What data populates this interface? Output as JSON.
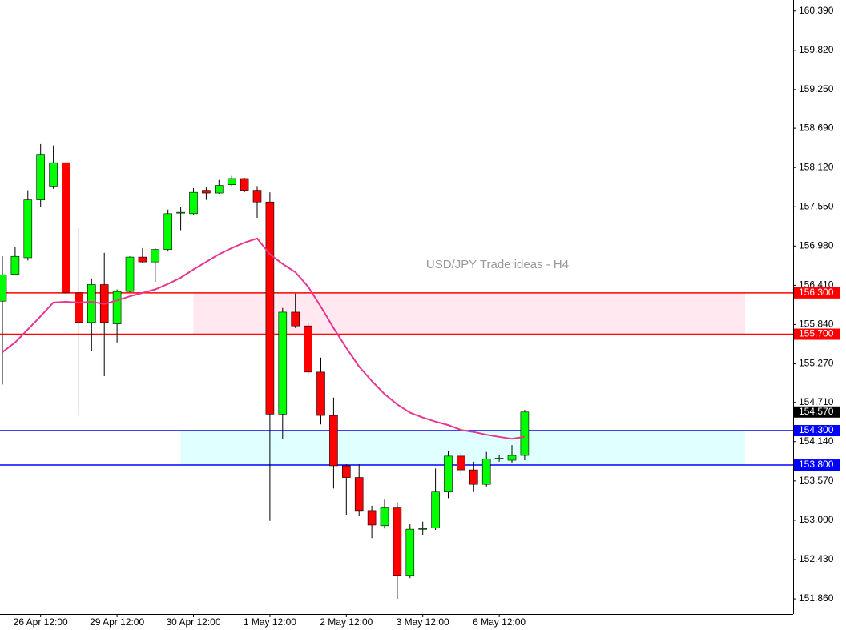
{
  "chart_data": {
    "type": "candlestick",
    "title": "USD/JPY Trade ideas - H4",
    "categories": [
      null,
      null,
      null,
      "26 Apr 12:00",
      null,
      null,
      null,
      null,
      null,
      "29 Apr 12:00",
      null,
      null,
      null,
      null,
      null,
      "30 Apr 12:00",
      null,
      null,
      null,
      null,
      null,
      "1 May 12:00",
      null,
      null,
      null,
      null,
      null,
      "2 May 12:00",
      null,
      null,
      null,
      null,
      null,
      "3 May 12:00",
      null,
      null,
      null,
      null,
      null,
      "6 May 12:00",
      null,
      null
    ],
    "open": [
      156.18,
      156.57,
      156.81,
      157.65,
      157.85,
      158.19,
      156.3,
      155.87,
      156.42,
      155.85,
      156.32,
      156.82,
      156.75,
      156.93,
      157.46,
      157.45,
      157.79,
      157.75,
      157.87,
      157.96,
      157.79,
      157.62,
      154.54,
      156.02,
      155.82,
      155.15,
      154.52,
      153.79,
      153.62,
      153.14,
      152.92,
      153.19,
      152.2,
      152.87,
      152.89,
      153.42,
      153.93,
      153.73,
      153.52,
      153.89,
      153.87,
      153.94
    ],
    "high": [
      156.83,
      156.97,
      157.79,
      158.46,
      158.44,
      160.2,
      157.24,
      156.51,
      156.88,
      156.35,
      156.83,
      156.95,
      156.95,
      157.51,
      157.55,
      157.82,
      157.83,
      157.94,
      158.0,
      157.97,
      157.85,
      157.76,
      156.08,
      156.29,
      155.87,
      155.36,
      154.78,
      153.81,
      153.81,
      153.21,
      153.31,
      153.26,
      152.94,
      152.98,
      153.75,
      154.01,
      153.98,
      153.85,
      153.99,
      153.95,
      154.09,
      154.6
    ],
    "low": [
      154.97,
      156.56,
      156.77,
      157.55,
      157.81,
      155.18,
      154.52,
      155.46,
      155.09,
      155.58,
      156.31,
      156.74,
      156.46,
      156.9,
      157.21,
      157.44,
      157.65,
      157.74,
      157.85,
      157.76,
      157.39,
      152.99,
      154.18,
      155.79,
      155.11,
      154.39,
      153.46,
      153.08,
      153.06,
      152.74,
      152.88,
      151.86,
      152.16,
      152.79,
      152.86,
      153.32,
      153.67,
      153.42,
      153.49,
      153.85,
      153.83,
      153.87
    ],
    "close": [
      156.56,
      156.83,
      157.65,
      158.3,
      158.19,
      156.3,
      155.87,
      156.42,
      155.87,
      156.32,
      156.82,
      156.75,
      156.93,
      157.45,
      157.47,
      157.76,
      157.75,
      157.86,
      157.96,
      157.79,
      157.62,
      154.54,
      156.02,
      155.82,
      155.15,
      154.52,
      153.79,
      153.62,
      153.14,
      152.93,
      153.19,
      152.2,
      152.87,
      152.88,
      153.42,
      153.93,
      153.73,
      153.52,
      153.89,
      153.9,
      153.94,
      154.57
    ],
    "up_color": "#00ff00",
    "down_color": "#ff0000",
    "moving_average": {
      "color": "#e8368f",
      "values": [
        155.44,
        155.58,
        155.77,
        155.96,
        156.16,
        156.17,
        156.16,
        156.17,
        156.14,
        156.19,
        156.25,
        156.3,
        156.35,
        156.43,
        156.52,
        156.64,
        156.75,
        156.86,
        156.95,
        157.03,
        157.09,
        156.86,
        156.72,
        156.6,
        156.39,
        156.1,
        155.79,
        155.5,
        155.23,
        155.02,
        154.83,
        154.68,
        154.56,
        154.49,
        154.43,
        154.38,
        154.31,
        154.28,
        154.24,
        154.21,
        154.18,
        154.21
      ]
    },
    "levels": [
      {
        "value": 156.3,
        "label": "156.300",
        "color": "#ff0000"
      },
      {
        "value": 155.7,
        "label": "155.700",
        "color": "#ff0000"
      },
      {
        "value": 154.3,
        "label": "154.300",
        "color": "#0000ff"
      },
      {
        "value": 153.8,
        "label": "153.800",
        "color": "#0000ff"
      }
    ],
    "zones": [
      {
        "color": "#ffe8f0"
      },
      {
        "color": "#e0ffff"
      }
    ],
    "current_price": {
      "value": 154.57,
      "label": "154.570"
    },
    "ylim": [
      151.64,
      160.55
    ],
    "yticks": [
      {
        "value": 160.39,
        "label": "160.390"
      },
      {
        "value": 159.82,
        "label": "159.820"
      },
      {
        "value": 159.25,
        "label": "159.250"
      },
      {
        "value": 158.69,
        "label": "158.690"
      },
      {
        "value": 158.12,
        "label": "158.120"
      },
      {
        "value": 157.55,
        "label": "157.550"
      },
      {
        "value": 156.98,
        "label": "156.980"
      },
      {
        "value": 156.41,
        "label": "156.410"
      },
      {
        "value": 155.84,
        "label": "155.840"
      },
      {
        "value": 155.27,
        "label": "155.270"
      },
      {
        "value": 154.71,
        "label": "154.710"
      },
      {
        "value": 154.14,
        "label": "154.140"
      },
      {
        "value": 153.57,
        "label": "153.570"
      },
      {
        "value": 153.0,
        "label": "153.000"
      },
      {
        "value": 152.43,
        "label": "152.430"
      },
      {
        "value": 151.86,
        "label": "151.860"
      }
    ]
  }
}
